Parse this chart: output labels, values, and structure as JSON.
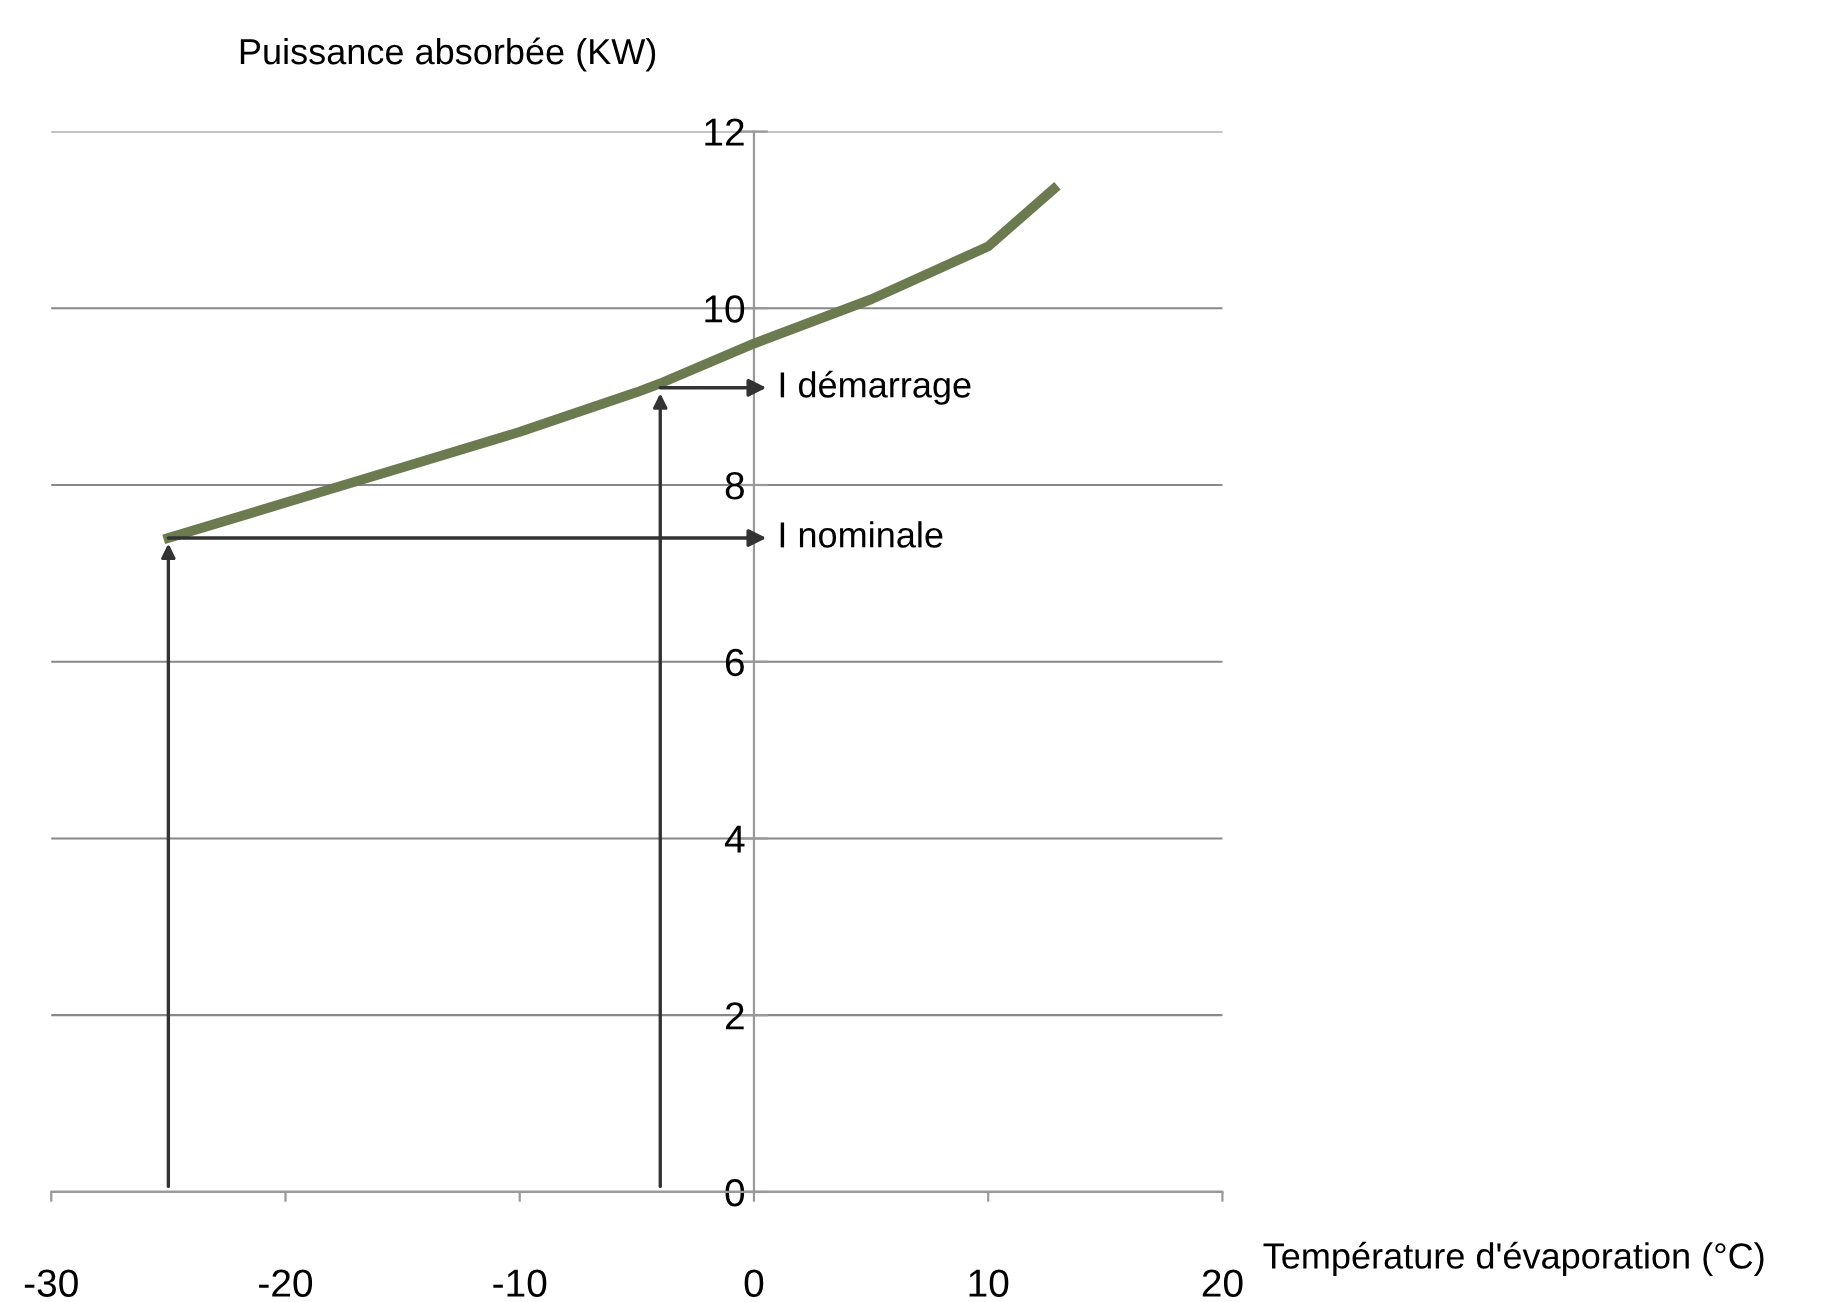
{
  "chart_data": {
    "type": "line",
    "xlabel": "Température d'évaporation (°C)",
    "ylabel": "Puissance absorbée (KW)",
    "x": [
      -25,
      -20,
      -15,
      -10,
      -5,
      -4,
      0,
      5,
      10,
      12.8
    ],
    "series": [
      {
        "color": "#6b7a4f",
        "values": [
          7.4,
          7.8,
          8.2,
          8.6,
          9.05,
          9.15,
          9.6,
          10.1,
          10.7,
          11.35
        ]
      }
    ],
    "xlim": [
      -30,
      20
    ],
    "xticks": [
      -30,
      -20,
      -10,
      0,
      10,
      20
    ],
    "ylim": [
      0,
      12
    ],
    "yticks": [
      0,
      2,
      4,
      6,
      8,
      10,
      12
    ],
    "grid": "y",
    "legend": false,
    "marker": "none",
    "line_style": "solid",
    "annotations": [
      {
        "text": "I démarrage",
        "x": -4,
        "y": 9.1
      },
      {
        "text": "I nominale",
        "x": -25,
        "y": 7.4
      }
    ]
  }
}
